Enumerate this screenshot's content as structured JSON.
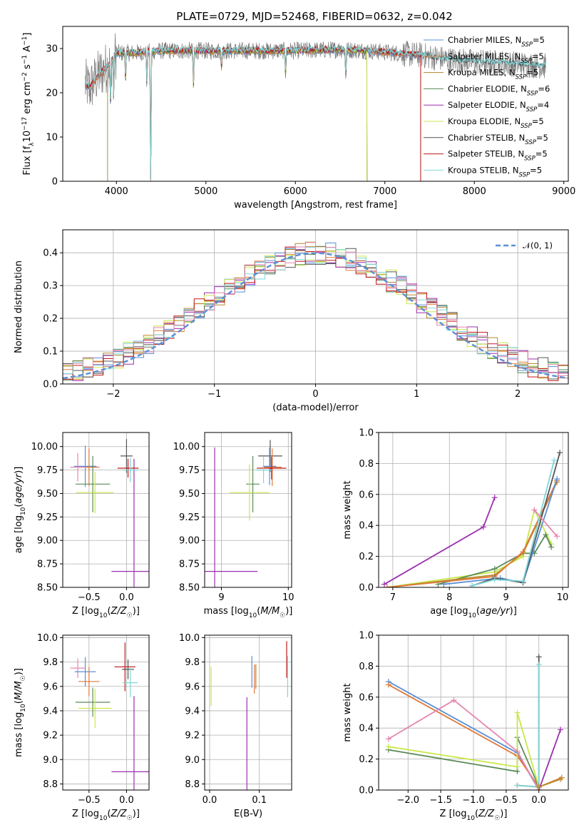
{
  "figure": {
    "title": "PLATE=0729, MJD=52468, FIBERID=0632, z=0.042"
  },
  "colors": {
    "Chabrier MILES": "#5b8fd6",
    "Salpeter MILES": "#e07a3a",
    "Kroupa MILES": "#b58a28",
    "Chabrier ELODIE": "#5a8a5a",
    "Salpeter ELODIE": "#9b2fae",
    "Kroupa ELODIE": "#c8e84a",
    "Chabrier STELIB": "#555555",
    "Salpeter STELIB": "#c01818",
    "Kroupa STELIB": "#7fd6d8",
    "pink": "#e585b0",
    "gaussian": "#5b8fd6"
  },
  "chart_data": [
    {
      "id": "spectrum",
      "type": "line",
      "title": "PLATE=0729, MJD=52468, FIBERID=0632, z=0.042",
      "xlabel": "wavelength [Angstrom, rest frame]",
      "ylabel": "Flux [f_λ 10^-17 erg cm^-2 s^-1 A^-1]",
      "xlim": [
        3400,
        9050
      ],
      "ylim": [
        0,
        35
      ],
      "xticks": [
        4000,
        5000,
        6000,
        7000,
        8000,
        9000
      ],
      "yticks": [
        0,
        10,
        20,
        30
      ],
      "grid": false,
      "legend_position": "right",
      "legend": [
        {
          "label": "Chabrier MILES, N_SSP=5",
          "main": "Chabrier MILES, N",
          "sub": "SSP",
          "tail": "=5"
        },
        {
          "label": "Salpeter MILES, N_SSP=5",
          "main": "Salpeter MILES, N",
          "sub": "SSP",
          "tail": "=5"
        },
        {
          "label": "Kroupa MILES, N_SSP=5",
          "main": "Kroupa MILES, N",
          "sub": "SSP",
          "tail": "=5"
        },
        {
          "label": "Chabrier ELODIE, N_SSP=6",
          "main": "Chabrier ELODIE, N",
          "sub": "SSP",
          "tail": "=6"
        },
        {
          "label": "Salpeter ELODIE, N_SSP=4",
          "main": "Salpeter ELODIE, N",
          "sub": "SSP",
          "tail": "=4"
        },
        {
          "label": "Kroupa ELODIE, N_SSP=5",
          "main": "Kroupa ELODIE, N",
          "sub": "SSP",
          "tail": "=5"
        },
        {
          "label": "Chabrier STELIB, N_SSP=5",
          "main": "Chabrier STELIB, N",
          "sub": "SSP",
          "tail": "=5"
        },
        {
          "label": "Salpeter STELIB, N_SSP=5",
          "main": "Salpeter STELIB, N",
          "sub": "SSP",
          "tail": "=5"
        },
        {
          "label": "Kroupa STELIB, N_SSP=5",
          "main": "Kroupa STELIB, N",
          "sub": "SSP",
          "tail": "=5"
        }
      ],
      "continuum_points": [
        [
          3650,
          22
        ],
        [
          3700,
          21
        ],
        [
          3800,
          24
        ],
        [
          3900,
          26
        ],
        [
          4000,
          29
        ],
        [
          4200,
          29
        ],
        [
          4500,
          29.5
        ],
        [
          5000,
          29.5
        ],
        [
          5500,
          29.5
        ],
        [
          6000,
          29.5
        ],
        [
          6500,
          29.8
        ],
        [
          6800,
          29.5
        ],
        [
          7100,
          29.0
        ],
        [
          7400,
          28.5
        ],
        [
          7700,
          27.5
        ],
        [
          8000,
          27
        ],
        [
          8500,
          26.5
        ],
        [
          8800,
          26
        ]
      ],
      "observed_range": [
        3650,
        8800
      ],
      "model_ranges": {
        "Chabrier MILES": [
          3650,
          7400
        ],
        "Salpeter MILES": [
          3650,
          7400
        ],
        "Kroupa MILES": [
          3900,
          6800
        ],
        "Chabrier ELODIE": [
          3900,
          6800
        ],
        "Salpeter ELODIE": [
          3900,
          6800
        ],
        "Kroupa ELODIE": [
          3900,
          6800
        ],
        "Chabrier STELIB": [
          3650,
          8800
        ],
        "Salpeter STELIB": [
          3650,
          7400
        ],
        "Kroupa STELIB": [
          3650,
          8800
        ]
      }
    },
    {
      "id": "residuals",
      "type": "bar",
      "xlabel": "(data-model)/error",
      "ylabel": "Normed distribution",
      "xlim": [
        -2.5,
        2.5
      ],
      "ylim": [
        0,
        0.47
      ],
      "xticks": [
        -2,
        -1,
        0,
        1,
        2
      ],
      "yticks": [
        0,
        0.1,
        0.2,
        0.3,
        0.4
      ],
      "grid": true,
      "legend_position": "top-right",
      "legend": [
        {
          "label": "N(0,1)",
          "main": "𝒩(0, 1)"
        }
      ],
      "bin_width": 0.1
    },
    {
      "id": "age-vs-Z",
      "type": "scatter",
      "xlabel": "Z [log10(Z/Z☉)]",
      "ylabel": "age [log10(age/yr)]",
      "xlim": [
        -0.85,
        0.3
      ],
      "ylim": [
        8.5,
        10.15
      ],
      "xticks": [
        -0.5,
        0.0
      ],
      "yticks": [
        8.5,
        8.75,
        9.0,
        9.25,
        9.5,
        9.75,
        10.0
      ],
      "grid": true,
      "points": [
        {
          "name": "Chabrier MILES",
          "x": -0.55,
          "xerr": 0.15,
          "y": 9.79,
          "yerr": 0.22
        },
        {
          "name": "Salpeter MILES",
          "x": -0.5,
          "xerr": 0.14,
          "y": 9.78,
          "yerr": 0.2
        },
        {
          "name": "Chabrier ELODIE",
          "x": -0.45,
          "xerr": 0.23,
          "y": 9.6,
          "yerr": 0.3
        },
        {
          "name": "Kroupa ELODIE",
          "x": -0.42,
          "xerr": 0.25,
          "y": 9.51,
          "yerr": 0.22
        },
        {
          "name": "Salpeter ELODIE",
          "x": 0.1,
          "xerr": 0.3,
          "y": 8.67,
          "yerr": 1.2
        },
        {
          "name": "Chabrier STELIB",
          "x": 0.0,
          "xerr": 0.08,
          "y": 9.9,
          "yerr": 0.18
        },
        {
          "name": "Salpeter STELIB",
          "x": 0.02,
          "xerr": 0.14,
          "y": 9.77,
          "yerr": 0.1
        },
        {
          "name": "Kroupa STELIB",
          "x": 0.05,
          "xerr": 0.1,
          "y": 9.75,
          "yerr": 0.13
        },
        {
          "name": "pink",
          "x": -0.65,
          "xerr": 0.1,
          "y": 9.78,
          "yerr": 0.15
        }
      ]
    },
    {
      "id": "age-vs-mass",
      "type": "scatter",
      "xlabel": "mass [log10(M/M☉)]",
      "ylabel": "",
      "xlim": [
        8.75,
        10.05
      ],
      "ylim": [
        8.5,
        10.15
      ],
      "xticks": [
        9,
        10
      ],
      "yticks": [
        8.5,
        8.75,
        9.0,
        9.25,
        9.5,
        9.75,
        10.0
      ],
      "grid": true,
      "points": [
        {
          "name": "Salpeter ELODIE",
          "x": 8.9,
          "xerr": 0.64,
          "y": 8.67,
          "yerr": 1.32
        },
        {
          "name": "Chabrier ELODIE",
          "x": 9.47,
          "xerr": 0.1,
          "y": 9.6,
          "yerr": 0.3
        },
        {
          "name": "Kroupa ELODIE",
          "x": 9.42,
          "xerr": 0.3,
          "y": 9.51,
          "yerr": 0.3
        },
        {
          "name": "Chabrier STELIB",
          "x": 9.73,
          "xerr": 0.18,
          "y": 9.9,
          "yerr": 0.17
        },
        {
          "name": "Chabrier MILES",
          "x": 9.72,
          "xerr": 0.1,
          "y": 9.79,
          "yerr": 0.2
        },
        {
          "name": "Salpeter MILES",
          "x": 9.76,
          "xerr": 0.14,
          "y": 9.78,
          "yerr": 0.2
        },
        {
          "name": "Salpeter STELIB",
          "x": 9.75,
          "xerr": 0.22,
          "y": 9.77,
          "yerr": 0.12
        },
        {
          "name": "Kroupa STELIB",
          "x": 9.63,
          "xerr": 0.12,
          "y": 9.75,
          "yerr": 0.14
        }
      ]
    },
    {
      "id": "massweight-vs-age",
      "type": "line",
      "xlabel": "age [log10(age/yr)]",
      "ylabel": "mass weight",
      "xlim": [
        6.75,
        10.1
      ],
      "ylim": [
        0,
        1.0
      ],
      "xticks": [
        7,
        8,
        9,
        10
      ],
      "yticks": [
        0.0,
        0.2,
        0.4,
        0.6,
        0.8,
        1.0
      ],
      "grid": true,
      "series": [
        {
          "name": "Salpeter ELODIE",
          "x": [
            6.85,
            8.6,
            8.8
          ],
          "y": [
            0.02,
            0.39,
            0.58
          ]
        },
        {
          "name": "Kroupa ELODIE",
          "x": [
            6.9,
            8.8,
            9.3,
            9.5,
            9.8
          ],
          "y": [
            0.0,
            0.1,
            0.2,
            0.5,
            0.28
          ]
        },
        {
          "name": "Chabrier ELODIE",
          "x": [
            7.8,
            8.8,
            9.3,
            9.5,
            9.7,
            9.8
          ],
          "y": [
            0.02,
            0.12,
            0.22,
            0.22,
            0.34,
            0.26
          ]
        },
        {
          "name": "Kroupa MILES",
          "x": [
            6.9,
            8.8,
            9.3,
            9.9
          ],
          "y": [
            0.0,
            0.08,
            0.22,
            0.68
          ]
        },
        {
          "name": "Salpeter MILES",
          "x": [
            6.9,
            8.8,
            9.3,
            9.9
          ],
          "y": [
            0.0,
            0.07,
            0.23,
            0.69
          ]
        },
        {
          "name": "Chabrier MILES",
          "x": [
            7.9,
            8.9,
            9.3,
            9.9
          ],
          "y": [
            0.02,
            0.06,
            0.03,
            0.7
          ]
        },
        {
          "name": "Chabrier STELIB",
          "x": [
            8.4,
            8.8,
            9.3,
            9.95
          ],
          "y": [
            0.01,
            0.06,
            0.03,
            0.87
          ]
        },
        {
          "name": "Kroupa STELIB",
          "x": [
            8.4,
            8.8,
            9.3,
            9.85
          ],
          "y": [
            0.01,
            0.05,
            0.04,
            0.82
          ]
        },
        {
          "name": "pink",
          "x": [
            9.5,
            9.9
          ],
          "y": [
            0.5,
            0.33
          ]
        }
      ]
    },
    {
      "id": "mass-vs-Z",
      "type": "scatter",
      "xlabel": "Z [log10(Z/Z☉)]",
      "ylabel": "mass [log10(M/M☉)]",
      "xlim": [
        -0.85,
        0.3
      ],
      "ylim": [
        8.75,
        10.02
      ],
      "xticks": [
        -0.5,
        0.0
      ],
      "yticks": [
        8.8,
        9.0,
        9.2,
        9.4,
        9.6,
        9.8,
        10.0
      ],
      "grid": true,
      "points": [
        {
          "name": "pink",
          "x": -0.65,
          "xerr": 0.1,
          "y": 9.75,
          "yerr": 0.08
        },
        {
          "name": "Chabrier MILES",
          "x": -0.55,
          "xerr": 0.14,
          "y": 9.72,
          "yerr": 0.12
        },
        {
          "name": "Salpeter MILES",
          "x": -0.5,
          "xerr": 0.14,
          "y": 9.64,
          "yerr": 0.12
        },
        {
          "name": "Chabrier ELODIE",
          "x": -0.45,
          "xerr": 0.23,
          "y": 9.47,
          "yerr": 0.12
        },
        {
          "name": "Kroupa ELODIE",
          "x": -0.42,
          "xerr": 0.22,
          "y": 9.42,
          "yerr": 0.16
        },
        {
          "name": "Salpeter ELODIE",
          "x": 0.1,
          "xerr": 0.3,
          "y": 8.9,
          "yerr": 0.62
        },
        {
          "name": "Chabrier STELIB",
          "x": 0.02,
          "xerr": 0.08,
          "y": 9.74,
          "yerr": 0.08
        },
        {
          "name": "Salpeter STELIB",
          "x": -0.02,
          "xerr": 0.14,
          "y": 9.76,
          "yerr": 0.2
        },
        {
          "name": "Kroupa STELIB",
          "x": 0.05,
          "xerr": 0.1,
          "y": 9.63,
          "yerr": 0.12
        }
      ]
    },
    {
      "id": "mass-vs-EBV",
      "type": "scatter",
      "xlabel": "E(B-V)",
      "ylabel": "",
      "xlim": [
        -0.01,
        0.165
      ],
      "ylim": [
        8.75,
        10.02
      ],
      "xticks": [
        0.0,
        0.1
      ],
      "yticks": [
        8.8,
        9.0,
        9.2,
        9.4,
        9.6,
        9.8,
        10.0
      ],
      "grid": true,
      "points": [
        {
          "name": "Kroupa ELODIE",
          "x": 0.003,
          "y": 9.6,
          "yerr": 0.16
        },
        {
          "name": "Salpeter ELODIE",
          "x": 0.075,
          "y": 9.08,
          "yerr": 0.43
        },
        {
          "name": "Chabrier MILES",
          "x": 0.085,
          "y": 9.72,
          "yerr": 0.13
        },
        {
          "name": "Salpeter MILES",
          "x": 0.09,
          "y": 9.66,
          "yerr": 0.12
        },
        {
          "name": "Kroupa MILES",
          "x": 0.093,
          "y": 9.68,
          "yerr": 0.1
        },
        {
          "name": "Salpeter STELIB",
          "x": 0.155,
          "y": 9.82,
          "yerr": 0.15
        },
        {
          "name": "Kroupa STELIB",
          "x": 0.157,
          "y": 9.68,
          "yerr": 0.17
        }
      ]
    },
    {
      "id": "massweight-vs-Z",
      "type": "line",
      "xlabel": "Z [log10(Z/Z☉)]",
      "ylabel": "mass weight",
      "xlim": [
        -2.45,
        0.45
      ],
      "ylim": [
        0,
        1.0
      ],
      "xticks": [
        -2.0,
        -1.5,
        -1.0,
        -0.5,
        0.0
      ],
      "yticks": [
        0.0,
        0.2,
        0.4,
        0.6,
        0.8,
        1.0
      ],
      "grid": true,
      "series": [
        {
          "name": "Chabrier MILES",
          "x": [
            -2.3,
            -0.33,
            0.0
          ],
          "y": [
            0.7,
            0.24,
            0.0
          ]
        },
        {
          "name": "Salpeter MILES",
          "x": [
            -2.3,
            -0.33,
            0.0,
            0.35
          ],
          "y": [
            0.68,
            0.22,
            0.02,
            0.08
          ]
        },
        {
          "name": "Chabrier ELODIE",
          "x": [
            -2.3,
            -0.33,
            -0.33,
            0.0
          ],
          "y": [
            0.26,
            0.12,
            0.34,
            0.02
          ]
        },
        {
          "name": "Kroupa ELODIE",
          "x": [
            -2.3,
            -0.33,
            -0.33,
            0.0
          ],
          "y": [
            0.28,
            0.15,
            0.5,
            0.02
          ]
        },
        {
          "name": "pink",
          "x": [
            -2.3,
            -1.3,
            -0.33,
            0.0
          ],
          "y": [
            0.33,
            0.58,
            0.25,
            0.0
          ]
        },
        {
          "name": "Salpeter ELODIE",
          "x": [
            0.0,
            0.33
          ],
          "y": [
            0.0,
            0.39
          ]
        },
        {
          "name": "Chabrier STELIB",
          "x": [
            -0.33,
            0.0,
            0.0
          ],
          "y": [
            0.03,
            0.02,
            0.86
          ]
        },
        {
          "name": "Kroupa STELIB",
          "x": [
            -0.33,
            0.0,
            0.0
          ],
          "y": [
            0.03,
            0.02,
            0.81
          ]
        },
        {
          "name": "Kroupa MILES",
          "x": [
            0.0,
            0.33
          ],
          "y": [
            0.02,
            0.07
          ]
        }
      ]
    }
  ]
}
